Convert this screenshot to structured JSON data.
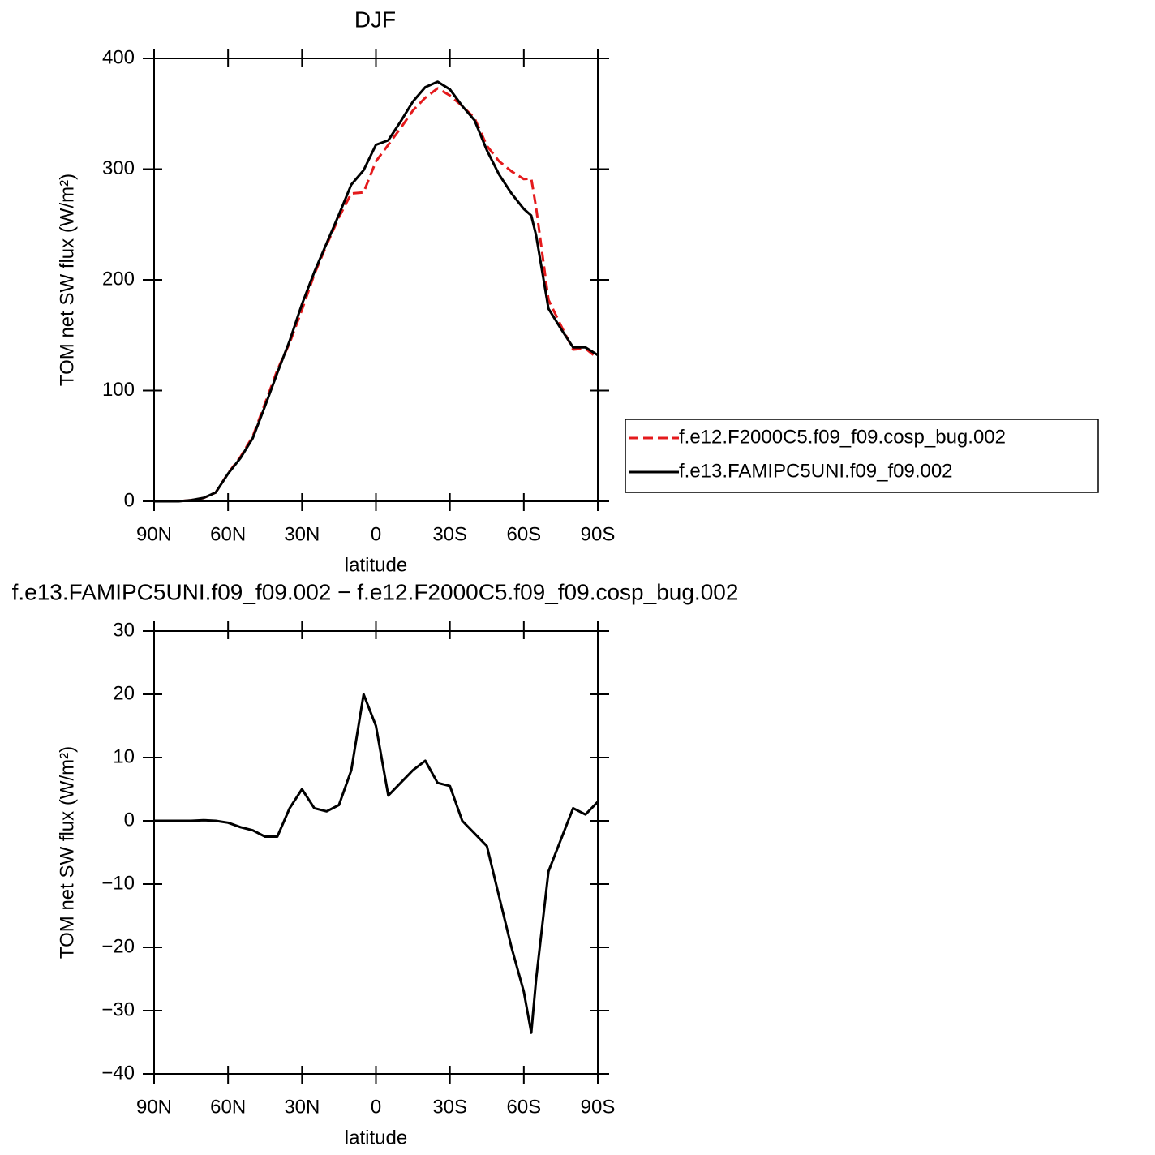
{
  "chart_data": [
    {
      "type": "line",
      "title": "DJF",
      "xlabel": "latitude",
      "ylabel": "TOM net SW flux (W/m²)",
      "x": [
        90,
        85,
        80,
        75,
        70,
        65,
        60,
        55,
        50,
        45,
        40,
        35,
        30,
        25,
        20,
        15,
        10,
        5,
        0,
        -5,
        -10,
        -15,
        -20,
        -25,
        -30,
        -35,
        -40,
        -45,
        -50,
        -55,
        -60,
        -63,
        -65,
        -70,
        -75,
        -80,
        -85,
        -90
      ],
      "series": [
        {
          "name": "f.e12.F2000C5.f09_f09.cosp_bug.002",
          "color": "#e41a1c",
          "dash": true,
          "values": [
            0,
            0,
            0,
            1,
            2.9,
            8,
            25.3,
            40,
            58.5,
            88.5,
            118.5,
            143,
            173,
            205,
            231.5,
            256.5,
            278,
            279,
            307,
            322,
            337,
            353,
            364.5,
            373,
            366.5,
            357,
            346,
            321,
            307,
            298,
            291,
            291.5,
            265,
            182,
            159,
            137,
            138,
            129
          ]
        },
        {
          "name": "f.e13.FAMIPC5UNI.f09_f09.002",
          "color": "#000000",
          "dash": false,
          "values": [
            0,
            0,
            0,
            1,
            3,
            8,
            25,
            39,
            57,
            86,
            116,
            145,
            178,
            207,
            233,
            259,
            286,
            299,
            322,
            326,
            343,
            361,
            374,
            379,
            372,
            357,
            344,
            317,
            295,
            278,
            264,
            258,
            240,
            174,
            156,
            139,
            139,
            132
          ]
        }
      ],
      "xlim": [
        90,
        -90
      ],
      "xticks": [
        {
          "value": 90,
          "label": "90N"
        },
        {
          "value": 60,
          "label": "60N"
        },
        {
          "value": 30,
          "label": "30N"
        },
        0,
        {
          "value": -30,
          "label": "30S"
        },
        {
          "value": -60,
          "label": "60S"
        },
        {
          "value": -90,
          "label": "90S"
        }
      ],
      "ylim": [
        0,
        400
      ],
      "yticks": [
        0,
        100,
        200,
        300,
        400
      ],
      "legend": "right"
    },
    {
      "type": "line",
      "title": "f.e13.FAMIPC5UNI.f09_f09.002 − f.e12.F2000C5.f09_f09.cosp_bug.002",
      "xlabel": "latitude",
      "ylabel": "TOM net SW flux (W/m²)",
      "x": [
        90,
        85,
        80,
        75,
        70,
        65,
        60,
        55,
        50,
        45,
        40,
        35,
        30,
        25,
        20,
        15,
        10,
        5,
        0,
        -5,
        -10,
        -15,
        -20,
        -25,
        -30,
        -35,
        -40,
        -45,
        -50,
        -55,
        -60,
        -63,
        -65,
        -70,
        -75,
        -80,
        -85,
        -90
      ],
      "series": [
        {
          "color": "#000000",
          "dash": false,
          "values": [
            0,
            0,
            0,
            0,
            0.1,
            0,
            -0.3,
            -1,
            -1.5,
            -2.5,
            -2.5,
            2,
            5,
            2,
            1.5,
            2.5,
            8,
            20,
            15,
            4,
            6,
            8,
            9.5,
            6,
            5.5,
            0,
            -2,
            -4,
            -12,
            -20,
            -27,
            -33.5,
            -25,
            -8,
            -3,
            2,
            1,
            3
          ]
        }
      ],
      "xlim": [
        90,
        -90
      ],
      "xticks": [
        {
          "value": 90,
          "label": "90N"
        },
        {
          "value": 60,
          "label": "60N"
        },
        {
          "value": 30,
          "label": "30N"
        },
        0,
        {
          "value": -30,
          "label": "30S"
        },
        {
          "value": -60,
          "label": "60S"
        },
        {
          "value": -90,
          "label": "90S"
        }
      ],
      "ylim": [
        -40,
        30
      ],
      "yticks": [
        {
          "value": -40,
          "label": "−40"
        },
        {
          "value": -30,
          "label": "−30"
        },
        {
          "value": -20,
          "label": "−20"
        },
        {
          "value": -10,
          "label": "−10"
        },
        0,
        10,
        20,
        30
      ]
    }
  ]
}
